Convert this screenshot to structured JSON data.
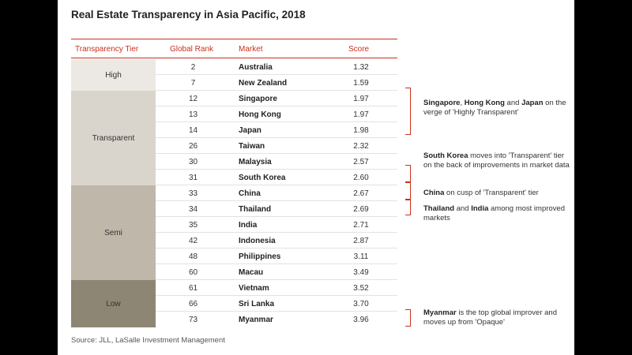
{
  "title": "Real Estate Transparency in Asia Pacific, 2018",
  "headers": {
    "tier": "Transparency Tier",
    "rank": "Global Rank",
    "market": "Market",
    "score": "Score"
  },
  "tiers": [
    {
      "label": "High",
      "color": "#ece9e5"
    },
    {
      "label": "Transparent",
      "color": "#d9d5cd"
    },
    {
      "label": "Semi",
      "color": "#bfb7aa"
    },
    {
      "label": "Low",
      "color": "#8d8674"
    }
  ],
  "rows": [
    {
      "rank": "2",
      "market": "Australia",
      "score": "1.32"
    },
    {
      "rank": "7",
      "market": "New Zealand",
      "score": "1.59"
    },
    {
      "rank": "12",
      "market": "Singapore",
      "score": "1.97"
    },
    {
      "rank": "13",
      "market": "Hong Kong",
      "score": "1.97"
    },
    {
      "rank": "14",
      "market": "Japan",
      "score": "1.98"
    },
    {
      "rank": "26",
      "market": "Taiwan",
      "score": "2.32"
    },
    {
      "rank": "30",
      "market": "Malaysia",
      "score": "2.57"
    },
    {
      "rank": "31",
      "market": "South Korea",
      "score": "2.60"
    },
    {
      "rank": "33",
      "market": "China",
      "score": "2.67"
    },
    {
      "rank": "34",
      "market": "Thailand",
      "score": "2.69"
    },
    {
      "rank": "35",
      "market": "India",
      "score": "2.71"
    },
    {
      "rank": "42",
      "market": "Indonesia",
      "score": "2.87"
    },
    {
      "rank": "48",
      "market": "Philippines",
      "score": "3.11"
    },
    {
      "rank": "60",
      "market": "Macau",
      "score": "3.49"
    },
    {
      "rank": "61",
      "market": "Vietnam",
      "score": "3.52"
    },
    {
      "rank": "66",
      "market": "Sri Lanka",
      "score": "3.70"
    },
    {
      "rank": "73",
      "market": "Myanmar",
      "score": "3.96"
    }
  ],
  "notes": {
    "n1": {
      "b1": "Singapore",
      "t1": ", ",
      "b2": "Hong Kong",
      "t2": " and ",
      "b3": "Japan",
      "t3": " on the verge of 'Highly Transparent'"
    },
    "n2": {
      "b1": "South Korea",
      "t1": " moves into 'Transparent' tier on the back of improvements in market data"
    },
    "n3": {
      "b1": "China",
      "t1": " on cusp of 'Transparent' tier"
    },
    "n4": {
      "b1": "Thailand",
      "t1": " and ",
      "b2": "India",
      "t2": " among most improved markets"
    },
    "n5": {
      "b1": "Myanmar",
      "t1": " is the top global improver and moves up from 'Opaque'"
    }
  },
  "source": "Source: JLL, LaSalle Investment Management"
}
